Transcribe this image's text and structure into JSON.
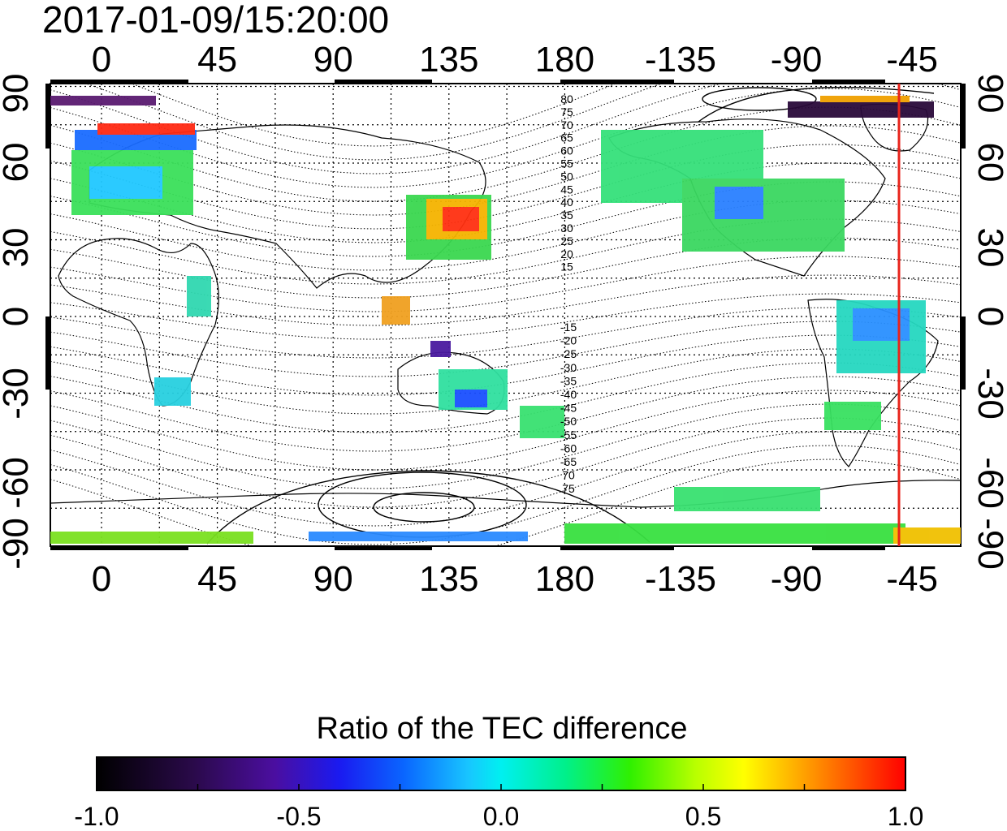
{
  "header": {
    "timestamp": "2017-01-09/15:20:00"
  },
  "map": {
    "x_ticks": [
      "0",
      "45",
      "90",
      "135",
      "180",
      "-135",
      "-90",
      "-45"
    ],
    "y_ticks": [
      "90",
      "60",
      "30",
      "0",
      "-30",
      "-60",
      "-90"
    ],
    "y_ticks_right": [
      "90",
      "60",
      "30",
      "0",
      "-30",
      "-60",
      "-90"
    ],
    "contour_labels_north": [
      "80",
      "75",
      "70",
      "65",
      "60",
      "55",
      "50",
      "45",
      "40",
      "35",
      "30",
      "25",
      "20",
      "15"
    ],
    "contour_labels_south": [
      "-15",
      "-20",
      "-25",
      "-30",
      "-35",
      "-40",
      "-45",
      "-50",
      "-55",
      "-60",
      "-65",
      "70",
      "75"
    ],
    "marker_line_color": "#e8231b"
  },
  "colorbar": {
    "title": "Ratio of the TEC difference",
    "tick_labels": [
      "-1.0",
      "-0.5",
      "0.0",
      "0.5",
      "1.0"
    ],
    "range": [
      -1.0,
      1.0
    ]
  }
}
